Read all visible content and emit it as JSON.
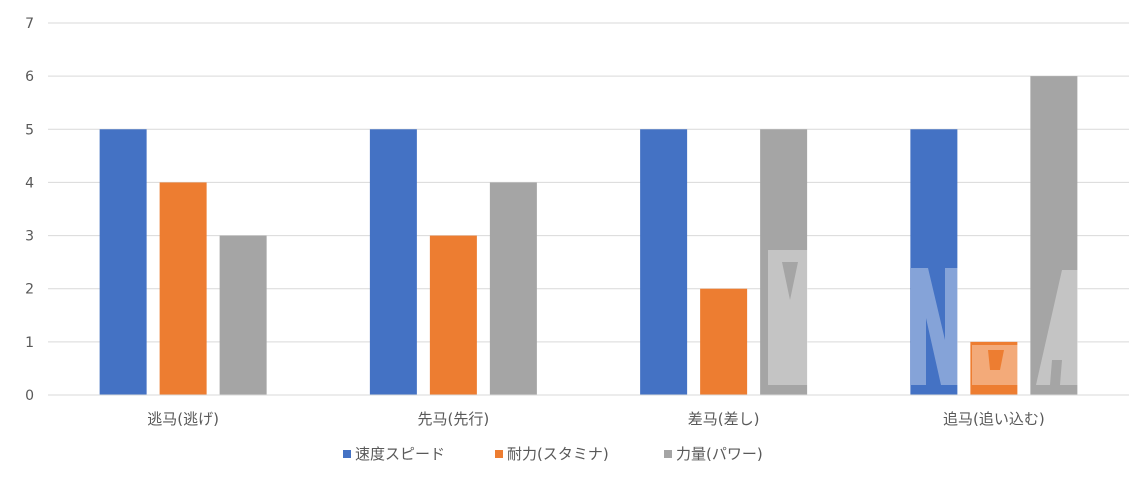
{
  "chart_data": {
    "type": "bar",
    "categories": [
      "逃马(逃げ)",
      "先马(先行)",
      "差马(差し)",
      "追马(追い込む)"
    ],
    "series": [
      {
        "name": "速度スピード",
        "color": "#4472C4",
        "values": [
          5,
          5,
          5,
          5
        ]
      },
      {
        "name": "耐力(スタミナ)",
        "color": "#ED7D31",
        "values": [
          4,
          3,
          2,
          1
        ]
      },
      {
        "name": "力量(パワー)",
        "color": "#A5A5A5",
        "values": [
          3,
          4,
          5,
          6
        ]
      }
    ],
    "ylim": [
      0,
      7
    ],
    "yticks": [
      0,
      1,
      2,
      3,
      4,
      5,
      6,
      7
    ],
    "grid": true,
    "legend": "bottom",
    "gridline_color": "#D9D9D9",
    "watermark_color": "#FFFFFF"
  }
}
